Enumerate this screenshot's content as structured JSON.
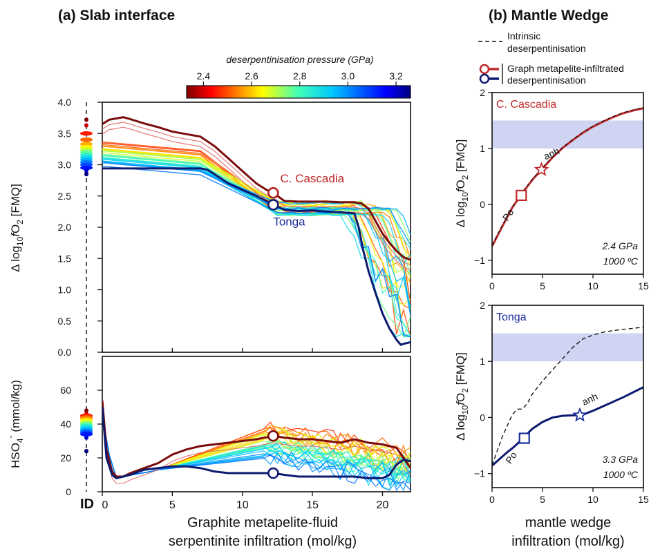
{
  "chart_data": [
    {
      "panel": "a",
      "title": "(a) Slab interface",
      "type": "line",
      "colorbar": {
        "title": "deserpentinisation pressure (GPa)",
        "ticks": [
          "2.4",
          "2.6",
          "2.8",
          "3.0",
          "3.2"
        ],
        "range": [
          2.33,
          3.26
        ],
        "colormap": "jet"
      },
      "id_label": "ID",
      "xlabel_line1": "Graphite metapelite-fluid",
      "xlabel_line2": "serpentinite infiltration (mol/kg)",
      "xlim": [
        0,
        22
      ],
      "xticks": [
        "0",
        "5",
        "10",
        "15",
        "20"
      ],
      "top": {
        "ylabel_pre": "Δ log",
        "ylabel_sub1": "10",
        "ylabel_f": "f",
        "ylabel_o": "O",
        "ylabel_sub2": "2",
        "ylabel_post": " [FMQ]",
        "ylim": [
          0,
          4
        ],
        "yticks": [
          "0.0",
          "0.5",
          "1.0",
          "1.5",
          "2.0",
          "2.5",
          "3.0",
          "3.5",
          "4.0"
        ],
        "series": [
          {
            "name": "C. Cascadia",
            "color": "#7a0c0c",
            "x": [
              0,
              0.5,
              1,
              1.5,
              2,
              3,
              4,
              5,
              6,
              7,
              8,
              9,
              10,
              11,
              11.7,
              12.2,
              13,
              14,
              15,
              16,
              17,
              18,
              18.5,
              19,
              19.5,
              20,
              20.5,
              21,
              21.5,
              22
            ],
            "y": [
              3.65,
              3.72,
              3.74,
              3.76,
              3.73,
              3.66,
              3.6,
              3.53,
              3.49,
              3.45,
              3.3,
              3.1,
              2.9,
              2.7,
              2.6,
              2.55,
              2.42,
              2.41,
              2.41,
              2.41,
              2.4,
              2.4,
              2.38,
              2.3,
              2.1,
              1.9,
              1.75,
              1.62,
              1.52,
              1.48
            ]
          },
          {
            "name": "Tonga",
            "color": "#0c1a70",
            "x": [
              0,
              1,
              2,
              3,
              4,
              5,
              6,
              7,
              7.5,
              8,
              9,
              10,
              11,
              11.7,
              12.2,
              13,
              14,
              15,
              16,
              17,
              18,
              18.3,
              18.6,
              19,
              19.5,
              20,
              20.5,
              21,
              21.3,
              21.6,
              22
            ],
            "y": [
              2.94,
              2.94,
              2.94,
              2.94,
              2.94,
              2.94,
              2.94,
              2.94,
              2.92,
              2.85,
              2.7,
              2.6,
              2.5,
              2.42,
              2.36,
              2.28,
              2.26,
              2.27,
              2.25,
              2.24,
              2.22,
              2.0,
              1.65,
              1.3,
              0.95,
              0.62,
              0.38,
              0.2,
              0.12,
              0.14,
              0.16
            ]
          }
        ],
        "points": [
          {
            "x": 12.2,
            "y": 2.55,
            "color": "#b02020"
          },
          {
            "x": 12.2,
            "y": 2.36,
            "color": "#0c1a70"
          }
        ],
        "labels": [
          {
            "text": "C. Cascadia",
            "x": 12.7,
            "y": 2.72,
            "color": "#c0282a"
          },
          {
            "text": "Tonga",
            "x": 12.2,
            "y": 2.03,
            "color": "#1a2a9a"
          }
        ],
        "id_y": [
          3.72,
          3.63,
          3.5,
          3.4,
          3.33,
          3.28,
          3.24,
          3.2,
          3.16,
          3.12,
          3.08,
          3.04,
          3.0,
          2.95,
          2.9,
          2.85
        ]
      },
      "bottom": {
        "ylabel_pre": "HSO",
        "ylabel_sub": "4",
        "ylabel_sup": "-",
        "ylabel_post": " (mmol/kg)",
        "ylim": [
          0,
          80
        ],
        "yticks": [
          "0",
          "20",
          "40",
          "60"
        ],
        "series": [
          {
            "name": "C. Cascadia",
            "color": "#7a0c0c",
            "x": [
              0,
              0.3,
              0.7,
              1,
              1.5,
              2,
              3,
              4,
              5,
              6,
              7,
              8,
              9,
              10,
              11,
              12.2,
              13,
              14,
              15,
              16,
              17,
              18,
              19,
              20,
              21,
              22
            ],
            "y": [
              54,
              25,
              12,
              9,
              9,
              11,
              14,
              17,
              22,
              25,
              27,
              28,
              29,
              30,
              31,
              33,
              32,
              31,
              31,
              30,
              29,
              31,
              29,
              28,
              26,
              14
            ]
          },
          {
            "name": "Tonga",
            "color": "#0c1a70",
            "x": [
              0,
              0.3,
              0.7,
              1,
              1.5,
              2,
              3,
              4,
              5,
              6,
              7,
              8,
              9,
              10,
              11,
              12.2,
              13,
              14,
              15,
              16,
              17,
              18,
              19,
              20,
              20.5,
              21,
              21.5,
              22
            ],
            "y": [
              50,
              20,
              10,
              8,
              9,
              10,
              13,
              14,
              15,
              15,
              14,
              12,
              11,
              11,
              11,
              11,
              10,
              9,
              9,
              9,
              9,
              9,
              8,
              8,
              10,
              16,
              19,
              18
            ]
          }
        ],
        "points": [
          {
            "x": 12.2,
            "y": 33,
            "color": "#7a0c0c"
          },
          {
            "x": 12.2,
            "y": 11,
            "color": "#0c1a70"
          }
        ],
        "id_y": [
          48,
          46,
          45,
          44,
          43,
          42,
          41,
          40,
          39,
          38,
          37,
          36,
          35,
          34,
          32,
          24
        ]
      }
    },
    {
      "panel": "b",
      "title": "(b) Mantle Wedge",
      "type": "line",
      "legend": {
        "intrinsic_line1": "Intrinsic",
        "intrinsic_line2": "deserpentinisation",
        "graph_line1": "Graph metapelite-infiltrated",
        "graph_line2": "deserpentinisation"
      },
      "xlabel_line1": "mantle wedge",
      "xlabel_line2": "infiltration (mol/kg)",
      "xlim": [
        0,
        15
      ],
      "xticks": [
        "0",
        "5",
        "10",
        "15"
      ],
      "ylim": [
        -1.25,
        2
      ],
      "yticks": [
        "−1",
        "0",
        "1",
        "2"
      ],
      "band": [
        1,
        1.5
      ],
      "ylabel_pre": "Δ log",
      "ylabel_sub1": "10",
      "ylabel_f": "f",
      "ylabel_o": "O",
      "ylabel_sub2": "2",
      "ylabel_post": " [FMQ]",
      "panels": [
        {
          "name": "C. Cascadia",
          "color": "#c0282a",
          "conditions_p": "2.4 GPa",
          "conditions_t": "1000 ºC",
          "phase_po": "Po",
          "phase_anh": "anh",
          "intrinsic": {
            "x": [
              0,
              1,
              2,
              3,
              4,
              5,
              6,
              7,
              8,
              9,
              10,
              11,
              12,
              13,
              14,
              15
            ],
            "y": [
              -0.73,
              -0.38,
              -0.05,
              0.22,
              0.45,
              0.66,
              0.85,
              1.02,
              1.16,
              1.29,
              1.4,
              1.49,
              1.57,
              1.64,
              1.69,
              1.73
            ]
          },
          "infiltrated": {
            "x": [
              0,
              1,
              2,
              3,
              4,
              5,
              6,
              7,
              8,
              9,
              10,
              11,
              12,
              13,
              14,
              15
            ],
            "y": [
              -0.75,
              -0.4,
              -0.06,
              0.2,
              0.44,
              0.64,
              0.84,
              1.01,
              1.15,
              1.28,
              1.39,
              1.48,
              1.56,
              1.63,
              1.68,
              1.72
            ]
          },
          "square": {
            "x": 2.9,
            "y": 0.16
          },
          "star": {
            "x": 4.9,
            "y": 0.62
          }
        },
        {
          "name": "Tonga",
          "color": "#1a2a9a",
          "conditions_p": "3.3 GPa",
          "conditions_t": "1000 ºC",
          "phase_po": "Po",
          "phase_anh": "anh",
          "intrinsic": {
            "x": [
              0,
              0.5,
              1,
              1.5,
              2,
              2.5,
              3,
              3.5,
              4,
              5,
              6,
              7,
              8,
              9,
              10,
              11,
              12,
              13,
              14,
              15
            ],
            "y": [
              -0.85,
              -0.6,
              -0.35,
              -0.15,
              0.05,
              0.15,
              0.15,
              0.25,
              0.42,
              0.65,
              0.85,
              1.05,
              1.25,
              1.4,
              1.47,
              1.52,
              1.55,
              1.57,
              1.59,
              1.61
            ]
          },
          "infiltrated": {
            "x": [
              0,
              0.5,
              1,
              1.5,
              2,
              2.5,
              3,
              4,
              5,
              6,
              7,
              8,
              8.7,
              9,
              10,
              11,
              12,
              13,
              14,
              15
            ],
            "y": [
              -0.86,
              -0.78,
              -0.7,
              -0.62,
              -0.55,
              -0.47,
              -0.38,
              -0.2,
              -0.08,
              0.0,
              0.03,
              0.04,
              0.04,
              0.05,
              0.12,
              0.2,
              0.28,
              0.36,
              0.45,
              0.54
            ]
          },
          "square": {
            "x": 3.2,
            "y": -0.37
          },
          "star": {
            "x": 8.7,
            "y": 0.04
          }
        }
      ]
    }
  ]
}
